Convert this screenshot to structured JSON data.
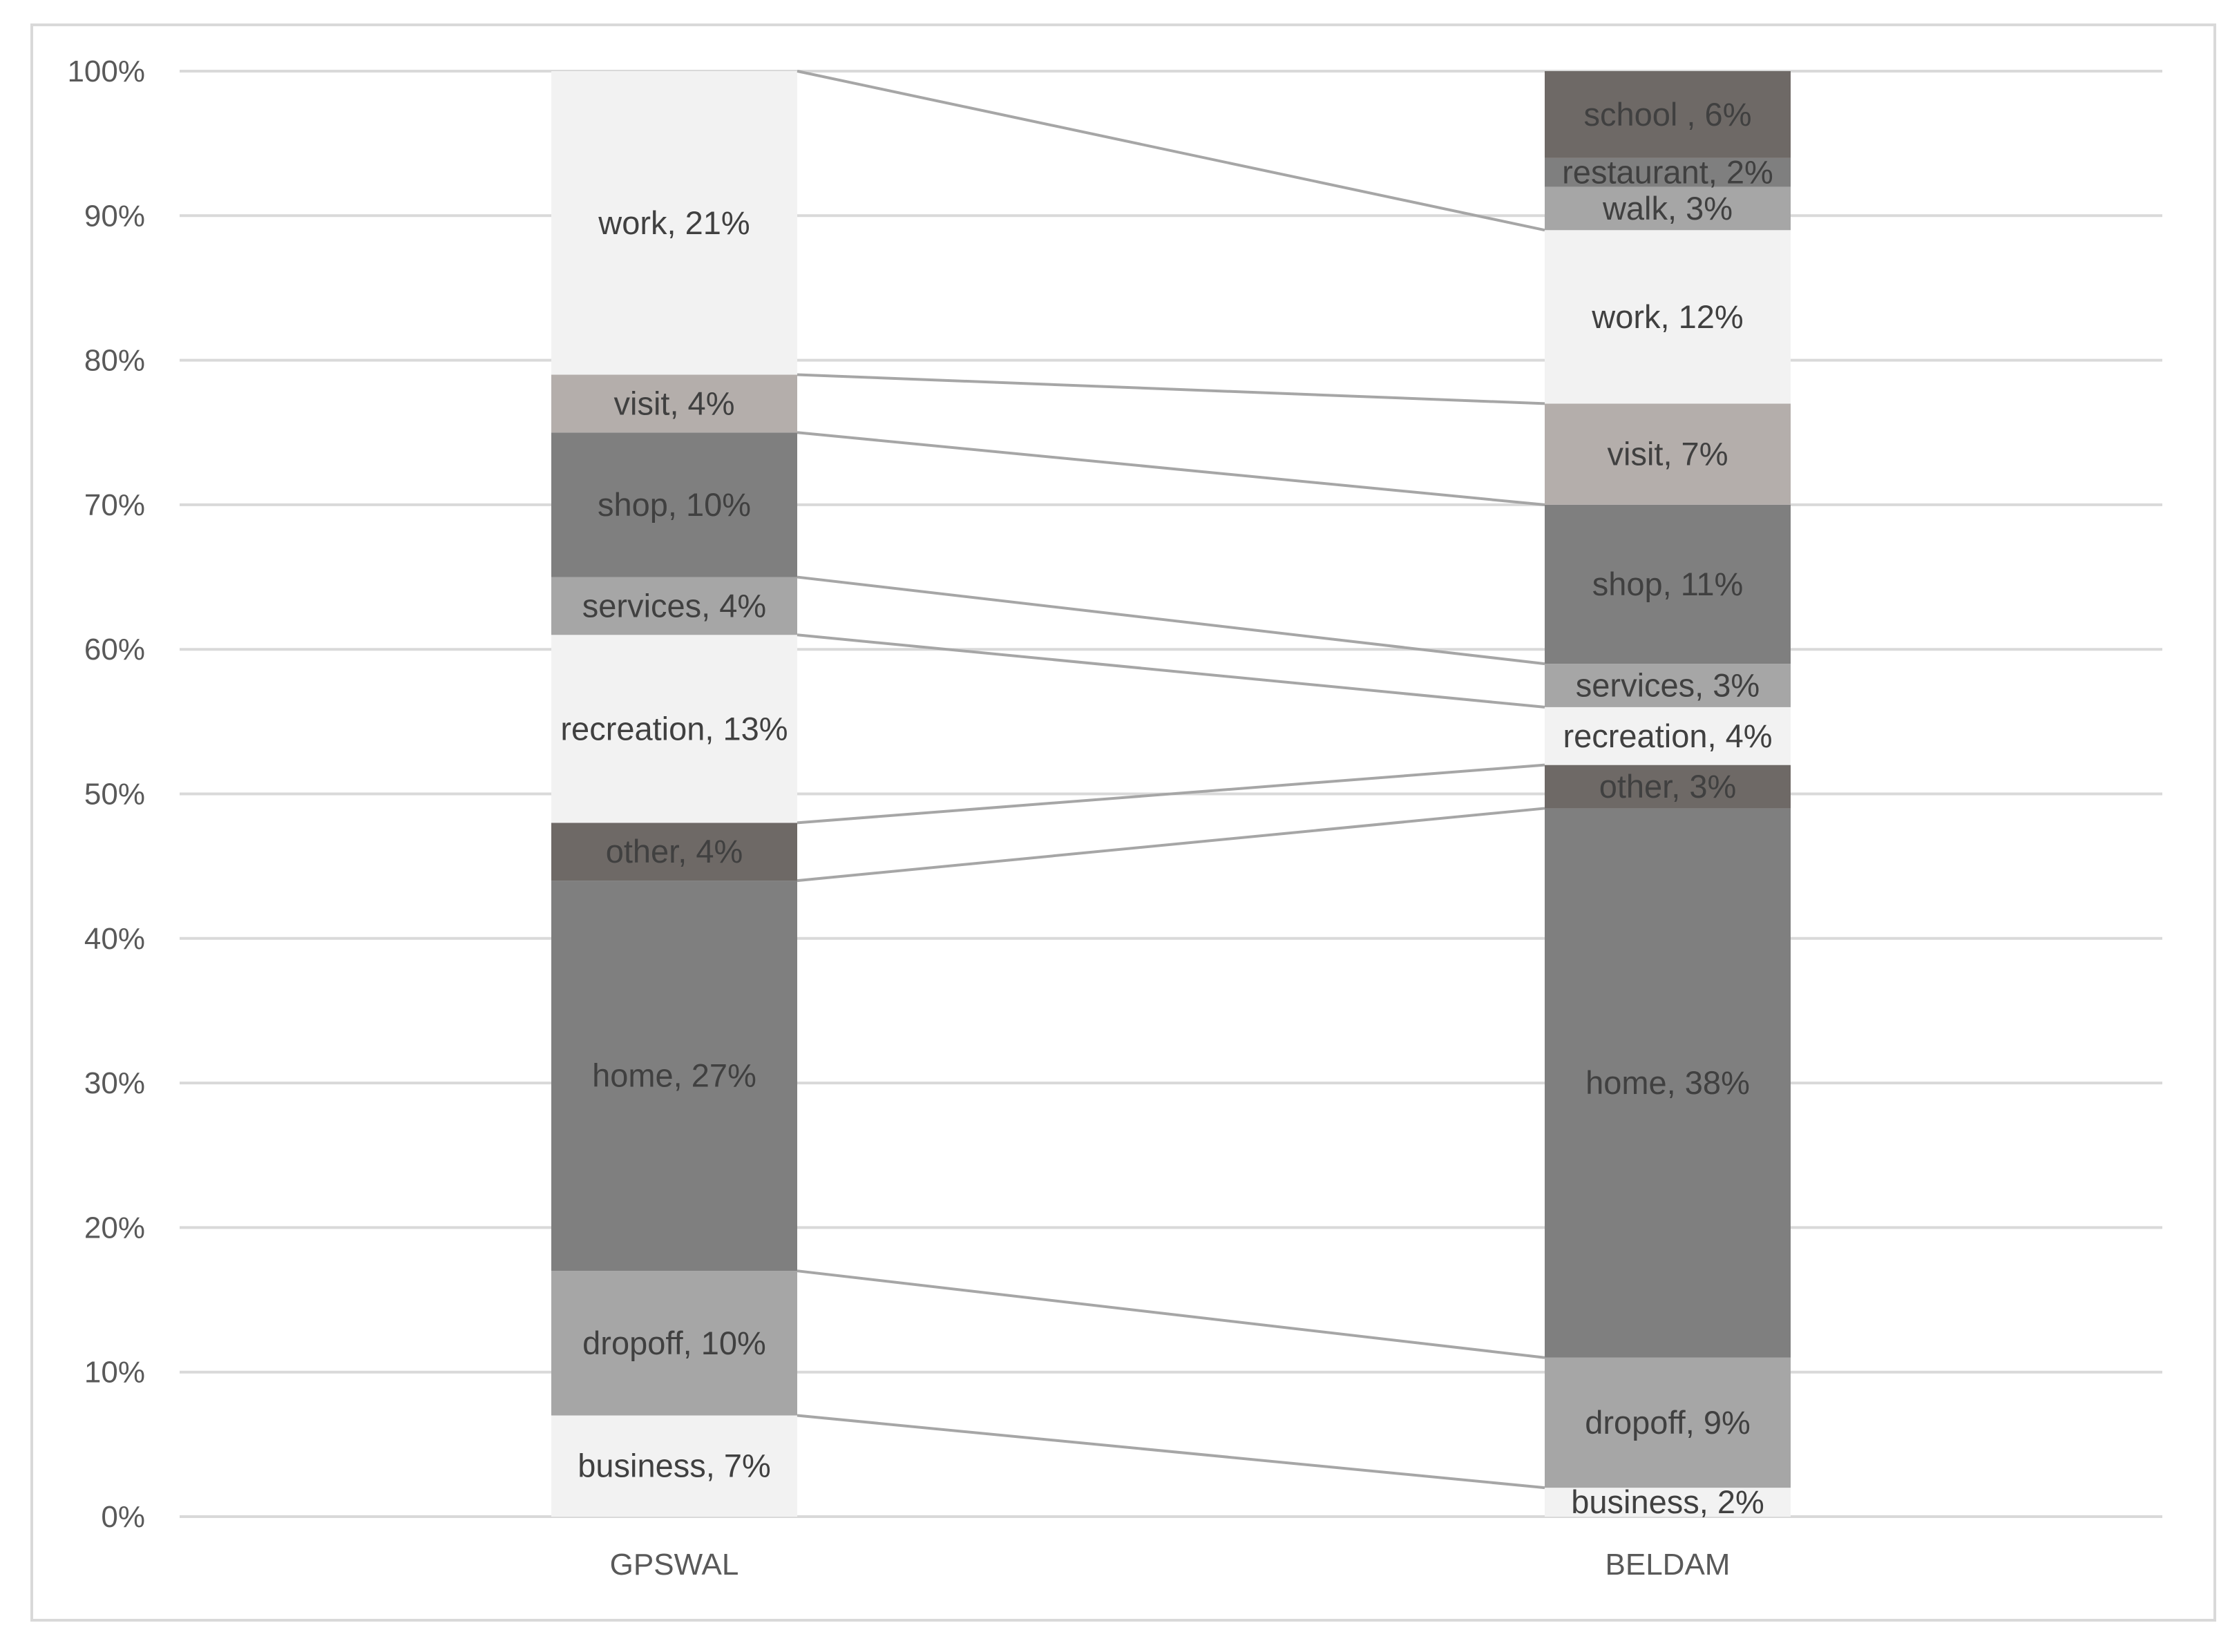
{
  "chart_data": {
    "type": "bar",
    "stacked": true,
    "percent_stacked": true,
    "categories": [
      "GPSWAL",
      "BELDAM"
    ],
    "ylim": [
      0,
      100
    ],
    "yticks": [
      "0%",
      "10%",
      "20%",
      "30%",
      "40%",
      "50%",
      "60%",
      "70%",
      "80%",
      "90%",
      "100%"
    ],
    "grid": true,
    "series_lines": true,
    "stacks": [
      {
        "category": "GPSWAL",
        "segments": [
          {
            "name": "business",
            "value": 7,
            "label": "business, 7%",
            "color": "#f2f2f2"
          },
          {
            "name": "dropoff",
            "value": 10,
            "label": "dropoff, 10%",
            "color": "#a6a6a6"
          },
          {
            "name": "home",
            "value": 27,
            "label": "home, 27%",
            "color": "#7f7f7f"
          },
          {
            "name": "other",
            "value": 4,
            "label": "other, 4%",
            "color": "#6e6966"
          },
          {
            "name": "recreation",
            "value": 13,
            "label": "recreation, 13%",
            "color": "#f2f2f2"
          },
          {
            "name": "services",
            "value": 4,
            "label": "services, 4%",
            "color": "#a6a6a6"
          },
          {
            "name": "shop",
            "value": 10,
            "label": "shop, 10%",
            "color": "#7f7f7f"
          },
          {
            "name": "visit",
            "value": 4,
            "label": "visit, 4%",
            "color": "#b4aeab"
          },
          {
            "name": "work",
            "value": 21,
            "label": "work, 21%",
            "color": "#f2f2f2"
          }
        ]
      },
      {
        "category": "BELDAM",
        "segments": [
          {
            "name": "business",
            "value": 2,
            "label": "business, 2%",
            "color": "#f2f2f2"
          },
          {
            "name": "dropoff",
            "value": 9,
            "label": "dropoff, 9%",
            "color": "#a6a6a6"
          },
          {
            "name": "home",
            "value": 38,
            "label": "home, 38%",
            "color": "#7f7f7f"
          },
          {
            "name": "other",
            "value": 3,
            "label": "other, 3%",
            "color": "#6e6966"
          },
          {
            "name": "recreation",
            "value": 4,
            "label": "recreation, 4%",
            "color": "#f2f2f2"
          },
          {
            "name": "services",
            "value": 3,
            "label": "services, 3%",
            "color": "#a6a6a6"
          },
          {
            "name": "shop",
            "value": 11,
            "label": "shop, 11%",
            "color": "#7f7f7f"
          },
          {
            "name": "visit",
            "value": 7,
            "label": "visit, 7%",
            "color": "#b4aeab"
          },
          {
            "name": "work",
            "value": 12,
            "label": "work, 12%",
            "color": "#f2f2f2"
          },
          {
            "name": "walk",
            "value": 3,
            "label": "walk, 3%",
            "color": "#a6a6a6"
          },
          {
            "name": "restaurant",
            "value": 2,
            "label": "restaurant, 2%",
            "color": "#7f7f7f"
          },
          {
            "name": "school",
            "value": 6,
            "label": "school , 6%",
            "color": "#6e6966"
          }
        ]
      }
    ],
    "connectors": [
      {
        "from": 7,
        "to": 2
      },
      {
        "from": 17,
        "to": 11
      },
      {
        "from": 44,
        "to": 49
      },
      {
        "from": 48,
        "to": 52
      },
      {
        "from": 61,
        "to": 56
      },
      {
        "from": 65,
        "to": 59
      },
      {
        "from": 75,
        "to": 70
      },
      {
        "from": 79,
        "to": 77
      },
      {
        "from": 100,
        "to": 89
      }
    ]
  }
}
